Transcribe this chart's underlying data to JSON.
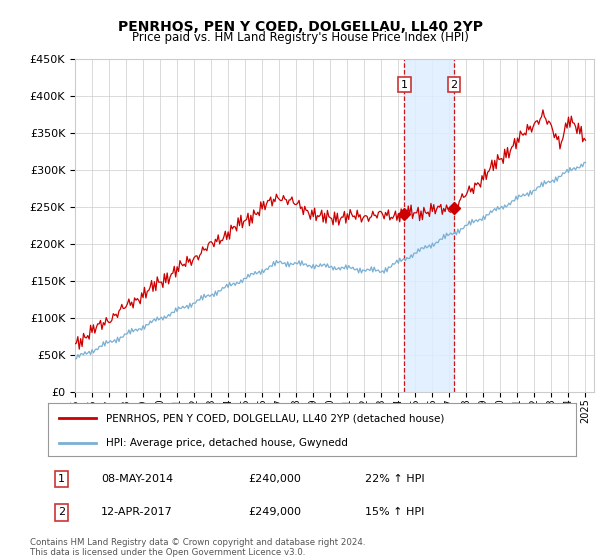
{
  "title": "PENRHOS, PEN Y COED, DOLGELLAU, LL40 2YP",
  "subtitle": "Price paid vs. HM Land Registry's House Price Index (HPI)",
  "legend_line1": "PENRHOS, PEN Y COED, DOLGELLAU, LL40 2YP (detached house)",
  "legend_line2": "HPI: Average price, detached house, Gwynedd",
  "footer": "Contains HM Land Registry data © Crown copyright and database right 2024.\nThis data is licensed under the Open Government Licence v3.0.",
  "sale1_date": "08-MAY-2014",
  "sale1_price": 240000,
  "sale1_pct": "22% ↑ HPI",
  "sale2_date": "12-APR-2017",
  "sale2_price": 249000,
  "sale2_pct": "15% ↑ HPI",
  "ylim": [
    0,
    450000
  ],
  "yticks": [
    0,
    50000,
    100000,
    150000,
    200000,
    250000,
    300000,
    350000,
    400000,
    450000
  ],
  "xlim_start": 1995.0,
  "xlim_end": 2025.5,
  "sale1_x": 2014.35,
  "sale2_x": 2017.28,
  "red_color": "#cc0000",
  "blue_color": "#7ab0d4",
  "highlight_color": "#ddeeff",
  "vline_color": "#cc0000",
  "box_color": "#cc3333",
  "background_color": "#ffffff",
  "grid_color": "#cccccc"
}
